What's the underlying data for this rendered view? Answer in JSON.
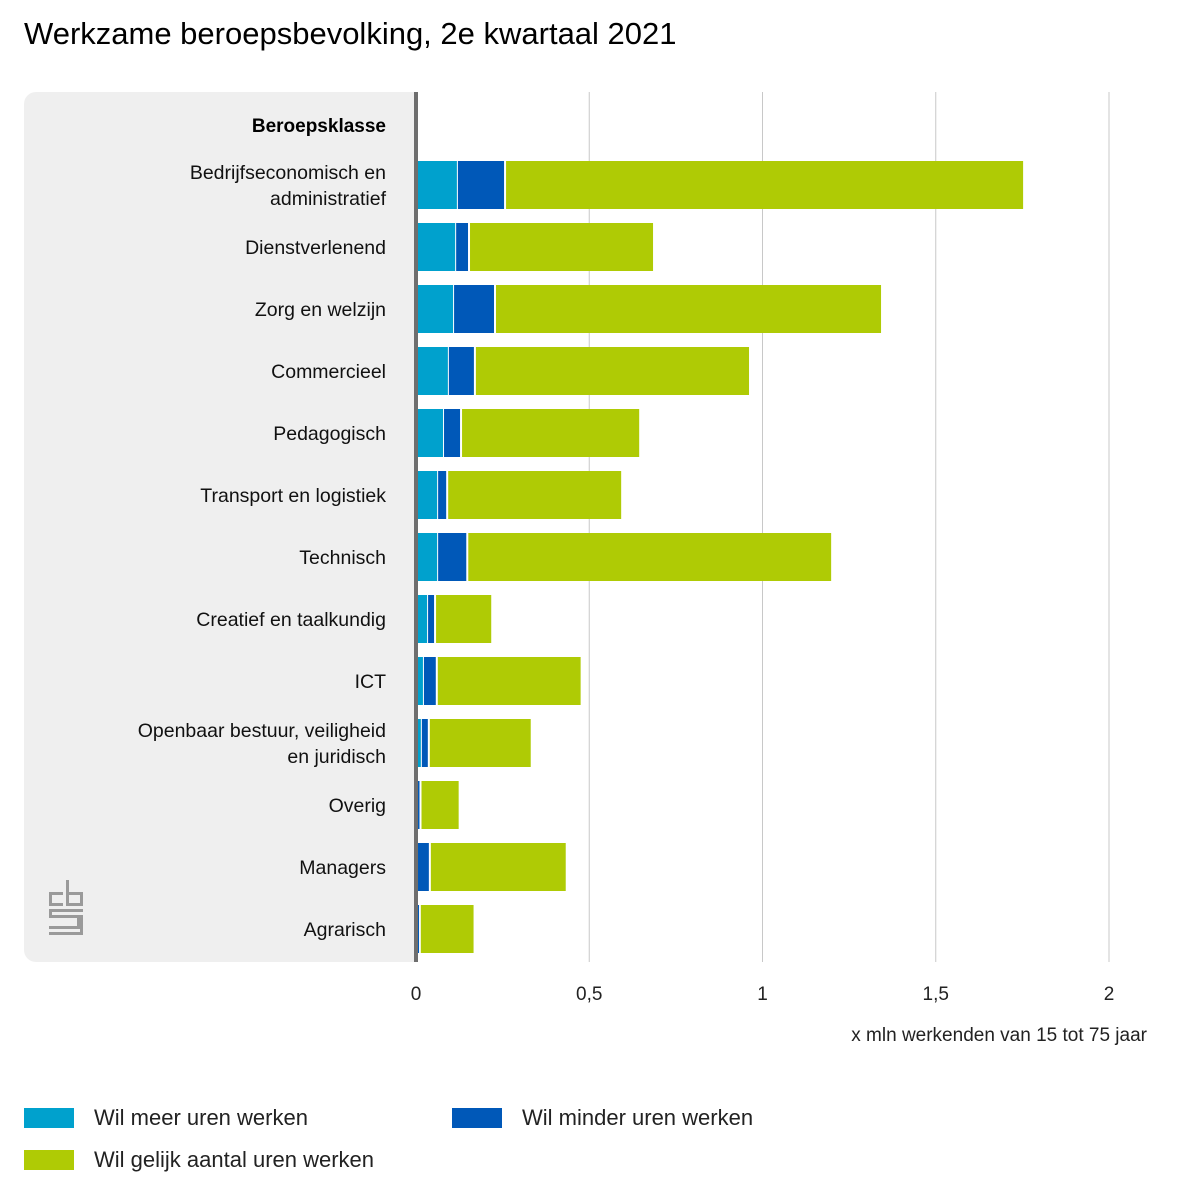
{
  "title": "Werkzame beroepsbevolking, 2e kwartaal 2021",
  "chart_data": {
    "type": "bar",
    "orientation": "horizontal",
    "stacked": true,
    "title": "Werkzame beroepsbevolking, 2e kwartaal 2021",
    "category_header": "Beroepsklasse",
    "xlabel": "x mln werkenden van 15 tot 75 jaar",
    "xlim": [
      0,
      2.2
    ],
    "xticks": [
      0,
      0.5,
      1,
      1.5,
      2
    ],
    "xtick_labels": [
      "0",
      "0,5",
      "1",
      "1,5",
      "2"
    ],
    "grid": true,
    "legend_position": "bottom",
    "categories": [
      [
        "Bedrijfseconomisch en",
        "administratief"
      ],
      [
        "Dienstverlenend"
      ],
      [
        "Zorg en welzijn"
      ],
      [
        "Commercieel"
      ],
      [
        "Pedagogisch"
      ],
      [
        "Transport en logistiek"
      ],
      [
        "Technisch"
      ],
      [
        "Creatief en taalkundig"
      ],
      [
        "ICT"
      ],
      [
        "Openbaar bestuur, veiligheid",
        "en juridisch"
      ],
      [
        "Overig"
      ],
      [
        "Managers"
      ],
      [
        "Agrarisch"
      ]
    ],
    "series": [
      {
        "name": "Wil meer uren werken",
        "color": "#00a1cd",
        "values": [
          0.118,
          0.113,
          0.107,
          0.092,
          0.078,
          0.061,
          0.061,
          0.032,
          0.02,
          0.014,
          0.003,
          0.003,
          0.003
        ]
      },
      {
        "name": "Wil minder uren werken",
        "color": "#0058b8",
        "values": [
          0.139,
          0.04,
          0.121,
          0.078,
          0.052,
          0.029,
          0.087,
          0.023,
          0.04,
          0.023,
          0.01,
          0.037,
          0.008
        ]
      },
      {
        "name": "Wil gelijk aantal uren werken",
        "color": "#afcb05",
        "values": [
          1.498,
          0.534,
          1.117,
          0.794,
          0.517,
          0.505,
          1.053,
          0.165,
          0.418,
          0.297,
          0.113,
          0.395,
          0.158
        ]
      }
    ]
  }
}
